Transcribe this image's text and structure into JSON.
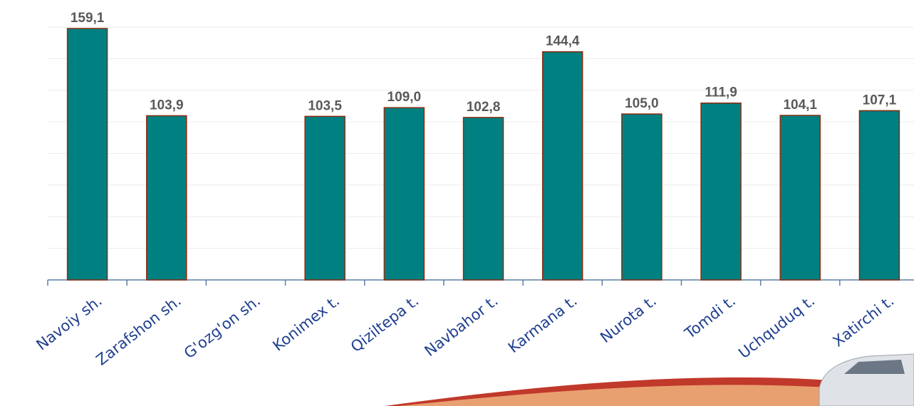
{
  "chart_data": {
    "type": "bar",
    "categories": [
      "Navoiy sh.",
      "Zarafshon sh.",
      "G'ozg'on sh.",
      "Konimex t.",
      "Qiziltepa t.",
      "Navbahor t.",
      "Karmana t.",
      "Nurota t.",
      "Tomdi t.",
      "Uchquduq t.",
      "Xatirchi t."
    ],
    "values": [
      159.1,
      103.9,
      null,
      103.5,
      109.0,
      102.8,
      144.4,
      105.0,
      111.9,
      104.1,
      107.1
    ],
    "value_labels": [
      "159,1",
      "103,9",
      null,
      "103,5",
      "109,0",
      "102,8",
      "144,4",
      "105,0",
      "111,9",
      "104,1",
      "107,1"
    ],
    "color": "#008080",
    "ylim": [
      0,
      160
    ],
    "yticks": [
      0,
      20,
      40,
      60,
      80,
      100,
      120,
      140,
      160
    ],
    "grid": true
  }
}
